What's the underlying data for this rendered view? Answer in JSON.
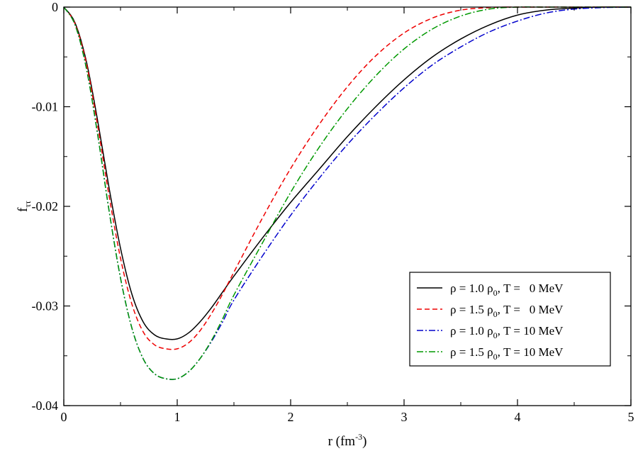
{
  "chart_data": {
    "type": "line",
    "xlabel_main": "r (fm",
    "xlabel_sup": "-3",
    "xlabel_end": ")",
    "ylabel_main": "f",
    "ylabel_sub": "ττ",
    "xlim": [
      0,
      5
    ],
    "ylim": [
      -0.04,
      0
    ],
    "x_ticks": [
      "0",
      "1",
      "2",
      "3",
      "4",
      "5"
    ],
    "x_tick_values": [
      0,
      1,
      2,
      3,
      4,
      5
    ],
    "y_ticks": [
      "0",
      "-0.01",
      "-0.02",
      "-0.03",
      "-0.04"
    ],
    "y_tick_values": [
      0,
      -0.01,
      -0.02,
      -0.03,
      -0.04
    ],
    "grid": false,
    "legend_position": "bottom-right",
    "series": [
      {
        "name": "ρ = 1.0 ρ₀, T =   0 MeV",
        "legend": {
          "a": "ρ = 1.0 ρ",
          "sub": "0",
          "b": ", T =   0 MeV"
        },
        "color": "#000000",
        "dash": "solid",
        "x": [
          0,
          0.1,
          0.2,
          0.3,
          0.4,
          0.5,
          0.6,
          0.7,
          0.8,
          0.9,
          1.0,
          1.1,
          1.2,
          1.3,
          1.4,
          1.5,
          1.75,
          2.0,
          2.25,
          2.5,
          2.75,
          3.0,
          3.25,
          3.5,
          3.75,
          4.0,
          4.25,
          4.5,
          4.75,
          5.0
        ],
        "y": [
          0,
          -0.0016,
          -0.0055,
          -0.0115,
          -0.0182,
          -0.0242,
          -0.0288,
          -0.0316,
          -0.0329,
          -0.0333,
          -0.0333,
          -0.0327,
          -0.0316,
          -0.0302,
          -0.0286,
          -0.027,
          -0.0232,
          -0.0196,
          -0.0163,
          -0.013,
          -0.01,
          -0.0073,
          -0.005,
          -0.0032,
          -0.0018,
          -0.0008,
          -0.0003,
          -0.0001,
          0,
          0
        ]
      },
      {
        "name": "ρ = 1.5 ρ₀, T =   0 MeV",
        "legend": {
          "a": "ρ = 1.5 ρ",
          "sub": "0",
          "b": ", T =   0 MeV"
        },
        "color": "#ee0000",
        "dash": "dashed",
        "x": [
          0,
          0.1,
          0.2,
          0.3,
          0.4,
          0.5,
          0.6,
          0.7,
          0.8,
          0.9,
          1.0,
          1.1,
          1.2,
          1.3,
          1.4,
          1.5,
          1.75,
          2.0,
          2.25,
          2.5,
          2.75,
          3.0,
          3.25,
          3.5,
          3.75,
          3.9,
          4.0,
          5.0
        ],
        "y": [
          0,
          -0.0017,
          -0.0057,
          -0.012,
          -0.019,
          -0.0252,
          -0.0298,
          -0.0326,
          -0.0339,
          -0.0343,
          -0.0343,
          -0.0337,
          -0.0325,
          -0.0308,
          -0.0288,
          -0.0266,
          -0.0212,
          -0.0162,
          -0.0118,
          -0.008,
          -0.0049,
          -0.0026,
          -0.0011,
          -0.0003,
          -5e-05,
          0,
          0,
          0
        ]
      },
      {
        "name": "ρ = 1.0 ρ₀, T = 10 MeV",
        "legend": {
          "a": "ρ = 1.0 ρ",
          "sub": "0",
          "b": ", T = 10 MeV"
        },
        "color": "#0000cc",
        "dash": "dashdot",
        "x": [
          0,
          0.1,
          0.2,
          0.3,
          0.4,
          0.5,
          0.6,
          0.7,
          0.8,
          0.9,
          1.0,
          1.1,
          1.2,
          1.3,
          1.4,
          1.5,
          1.75,
          2.0,
          2.25,
          2.5,
          2.75,
          3.0,
          3.25,
          3.5,
          3.75,
          4.0,
          4.25,
          4.5,
          4.75,
          5.0
        ],
        "y": [
          0,
          -0.0018,
          -0.0062,
          -0.0129,
          -0.0205,
          -0.0272,
          -0.0322,
          -0.0353,
          -0.0368,
          -0.0373,
          -0.0373,
          -0.0366,
          -0.0353,
          -0.0336,
          -0.0316,
          -0.0294,
          -0.025,
          -0.0209,
          -0.0172,
          -0.0138,
          -0.0108,
          -0.0081,
          -0.0058,
          -0.004,
          -0.0025,
          -0.0014,
          -0.0006,
          -0.0002,
          -5e-05,
          0
        ]
      },
      {
        "name": "ρ = 1.5 ρ₀, T = 10 MeV",
        "legend": {
          "a": "ρ = 1.5 ρ",
          "sub": "0",
          "b": ", T = 10 MeV"
        },
        "color": "#009900",
        "dash": "dashdot",
        "x": [
          0,
          0.1,
          0.2,
          0.3,
          0.4,
          0.5,
          0.6,
          0.7,
          0.8,
          0.9,
          1.0,
          1.1,
          1.2,
          1.3,
          1.4,
          1.5,
          1.75,
          2.0,
          2.25,
          2.5,
          2.75,
          3.0,
          3.25,
          3.5,
          3.75,
          4.0,
          4.25,
          4.5,
          5.0
        ],
        "y": [
          0,
          -0.0018,
          -0.0062,
          -0.0129,
          -0.0205,
          -0.0272,
          -0.0322,
          -0.0353,
          -0.0368,
          -0.0373,
          -0.0373,
          -0.0366,
          -0.0353,
          -0.0335,
          -0.0313,
          -0.0289,
          -0.0237,
          -0.0186,
          -0.0141,
          -0.0102,
          -0.0069,
          -0.0042,
          -0.0022,
          -0.0009,
          -0.0002,
          0,
          0,
          0,
          0
        ]
      }
    ]
  }
}
